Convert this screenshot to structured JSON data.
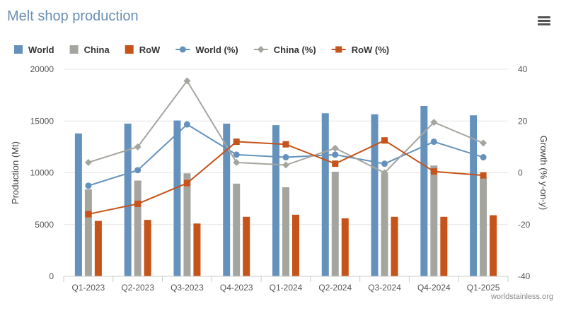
{
  "title": "Melt shop production",
  "menu_icon": "hamburger-menu-icon",
  "credit": "worldstainless.org",
  "colors": {
    "world": "#6592bd",
    "china": "#a5a5a0",
    "row": "#c5531a",
    "world_line": "#6592bd",
    "china_line": "#a5a5a0",
    "row_line": "#c5531a",
    "grid": "#e6e6e6",
    "title": "#6a8fb2"
  },
  "chart_data": {
    "type": "bar",
    "categories": [
      "Q1-2023",
      "Q2-2023",
      "Q3-2023",
      "Q4-2023",
      "Q1-2024",
      "Q2-2024",
      "Q3-2024",
      "Q4-2024",
      "Q1-2025"
    ],
    "ylabel": "Production (Mt)",
    "ylabel_right": "Growth (% y-on-y)",
    "ylim": [
      0,
      20000
    ],
    "yticks": [
      "0",
      "5000",
      "10000",
      "15000",
      "20000"
    ],
    "ylim_right": [
      -40,
      40
    ],
    "yticks_right": [
      "-40",
      "-20",
      "0",
      "20",
      "40"
    ],
    "grid": true,
    "legend_placement": "top-left",
    "series": [
      {
        "name": "World",
        "kind": "bar",
        "values": [
          13800,
          14750,
          15050,
          14750,
          14600,
          15750,
          15650,
          16450,
          15550
        ]
      },
      {
        "name": "China",
        "kind": "bar",
        "values": [
          8400,
          9250,
          9950,
          8950,
          8600,
          10100,
          9950,
          10700,
          9550
        ]
      },
      {
        "name": "RoW",
        "kind": "bar",
        "values": [
          5350,
          5450,
          5100,
          5750,
          5950,
          5600,
          5750,
          5750,
          5900
        ]
      },
      {
        "name": "World (%)",
        "kind": "line",
        "marker": "circle",
        "axis": "right",
        "values": [
          -5,
          1,
          18.7,
          7,
          6,
          7,
          3.5,
          12,
          6
        ]
      },
      {
        "name": "China (%)",
        "kind": "line",
        "marker": "diamond",
        "axis": "right",
        "values": [
          4,
          10,
          35.5,
          4,
          3,
          9.5,
          0,
          19.5,
          11.5
        ]
      },
      {
        "name": "RoW (%)",
        "kind": "line",
        "marker": "square",
        "axis": "right",
        "values": [
          -16,
          -12,
          -4,
          12,
          11,
          3.5,
          12.5,
          0.5,
          -1
        ]
      }
    ]
  }
}
